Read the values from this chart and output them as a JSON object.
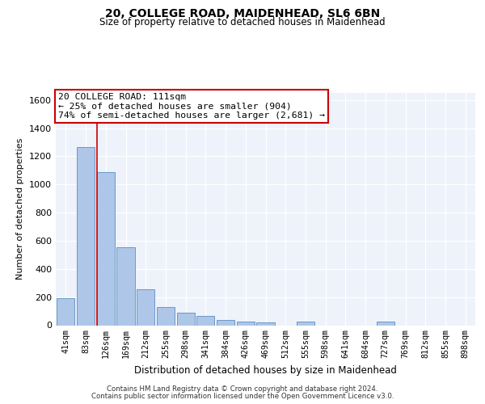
{
  "title": "20, COLLEGE ROAD, MAIDENHEAD, SL6 6BN",
  "subtitle": "Size of property relative to detached houses in Maidenhead",
  "xlabel": "Distribution of detached houses by size in Maidenhead",
  "ylabel": "Number of detached properties",
  "categories": [
    "41sqm",
    "83sqm",
    "126sqm",
    "169sqm",
    "212sqm",
    "255sqm",
    "298sqm",
    "341sqm",
    "384sqm",
    "426sqm",
    "469sqm",
    "512sqm",
    "555sqm",
    "598sqm",
    "641sqm",
    "684sqm",
    "727sqm",
    "769sqm",
    "812sqm",
    "855sqm",
    "898sqm"
  ],
  "values": [
    195,
    1265,
    1090,
    555,
    255,
    130,
    90,
    65,
    35,
    25,
    20,
    0,
    25,
    0,
    0,
    0,
    25,
    0,
    0,
    0,
    0
  ],
  "bar_color": "#aec6e8",
  "bar_edge_color": "#5a8fc0",
  "background_color": "#eef2fb",
  "grid_color": "#ffffff",
  "ylim": [
    0,
    1650
  ],
  "yticks": [
    0,
    200,
    400,
    600,
    800,
    1000,
    1200,
    1400,
    1600
  ],
  "vline_x": 1.55,
  "vline_color": "#cc0000",
  "annotation_text": "20 COLLEGE ROAD: 111sqm\n← 25% of detached houses are smaller (904)\n74% of semi-detached houses are larger (2,681) →",
  "annotation_box_facecolor": "#ffffff",
  "annotation_box_edgecolor": "#cc0000",
  "footer_line1": "Contains HM Land Registry data © Crown copyright and database right 2024.",
  "footer_line2": "Contains public sector information licensed under the Open Government Licence v3.0."
}
